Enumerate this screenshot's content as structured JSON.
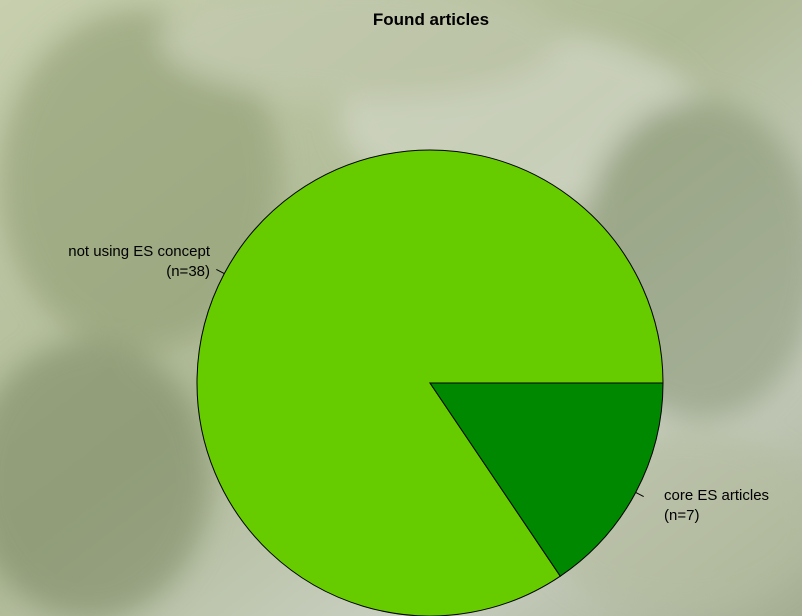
{
  "chart_data": {
    "type": "pie",
    "title": "Found articles",
    "slices": [
      {
        "label": "not using ES concept",
        "count_label": "(n=38)",
        "value": 38,
        "color": "#66cc00"
      },
      {
        "label": "core ES articles",
        "count_label": "(n=7)",
        "value": 7,
        "color": "#008800"
      }
    ],
    "start_angle": "3 o'clock, counterclockwise",
    "legend": "none"
  },
  "background": {
    "description_colors": [
      "#c2caa9",
      "#9aa68a",
      "#d6dccb",
      "#7f8f68"
    ]
  }
}
